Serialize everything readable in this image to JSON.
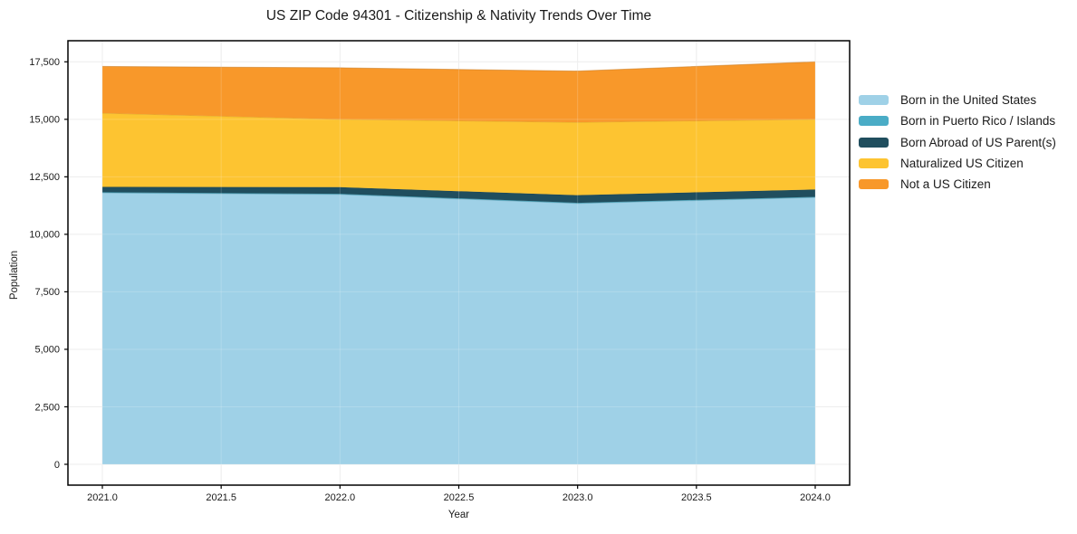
{
  "title": "US ZIP Code 94301 - Citizenship & Nativity Trends Over Time",
  "chart_data": {
    "type": "area",
    "stacked": true,
    "title": "US ZIP Code 94301 - Citizenship & Nativity Trends Over Time",
    "xlabel": "Year",
    "ylabel": "Population",
    "grid": true,
    "legend_position": "right-outside",
    "x": [
      2021,
      2022,
      2023,
      2024
    ],
    "series": [
      {
        "name": "Born in the United States",
        "color": "#9fd1e7",
        "values": [
          11800,
          11730,
          11340,
          11600
        ]
      },
      {
        "name": "Born in Puerto Rico / Islands",
        "color": "#4aacc6",
        "values": [
          30,
          30,
          30,
          30
        ]
      },
      {
        "name": "Born Abroad of US Parent(s)",
        "color": "#204e5e",
        "values": [
          230,
          290,
          330,
          320
        ]
      },
      {
        "name": "Naturalized US Citizen",
        "color": "#fdc431",
        "values": [
          3210,
          2950,
          3170,
          3050
        ]
      },
      {
        "name": "Not a US Citizen",
        "color": "#f8982a",
        "values": [
          2030,
          2240,
          2230,
          2500
        ]
      }
    ],
    "totals": [
      17300,
      17240,
      17100,
      17500
    ],
    "ylim": [
      0,
      17500
    ],
    "x_ticks": {
      "values": [
        2021.0,
        2021.5,
        2022.0,
        2022.5,
        2023.0,
        2023.5,
        2024.0
      ],
      "labels": [
        "2021.0",
        "2021.5",
        "2022.0",
        "2022.5",
        "2023.0",
        "2023.5",
        "2024.0"
      ]
    },
    "y_ticks": {
      "values": [
        0,
        2500,
        5000,
        7500,
        10000,
        12500,
        15000,
        17500
      ],
      "labels": [
        "0",
        "2,500",
        "5,000",
        "7,500",
        "10,000",
        "12,500",
        "15,000",
        "17,500"
      ]
    }
  }
}
